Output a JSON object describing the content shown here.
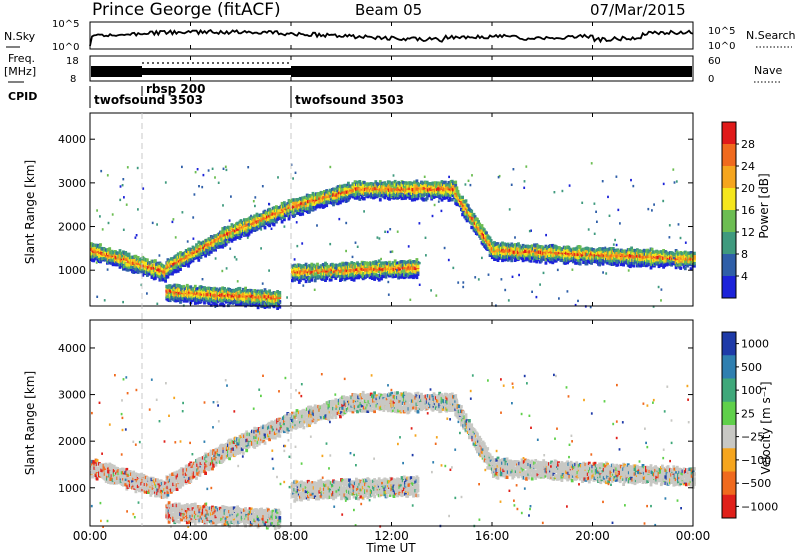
{
  "header": {
    "station": "Prince George (fitACF)",
    "beam": "Beam 05",
    "date": "07/Mar/2015"
  },
  "strip_noise": {
    "left_label": "N.Sky",
    "right_label": "N.Search",
    "left_ticks": [
      "10^5",
      "10^0"
    ],
    "right_ticks": [
      "10^5",
      "10^0"
    ]
  },
  "strip_freq": {
    "left_label_1": "Freq.",
    "left_label_2": "[MHz]",
    "right_label": "Nave",
    "left_ticks": [
      "18",
      "8"
    ],
    "right_ticks": [
      "60",
      "0"
    ]
  },
  "cpid": {
    "label": "CPID",
    "segments": [
      {
        "name": "twofsound 3503",
        "start_hour": 0
      },
      {
        "name": "rbsp 200",
        "start_hour": 2
      },
      {
        "name": "twofsound 3503",
        "start_hour": 8
      }
    ]
  },
  "x_axis": {
    "label": "Time UT",
    "ticks": [
      "00:00",
      "04:00",
      "08:00",
      "12:00",
      "16:00",
      "20:00",
      "00:00"
    ]
  },
  "power_panel": {
    "ylabel": "Slant Range [km]",
    "yticks": [
      "1000",
      "2000",
      "3000",
      "4000"
    ],
    "colorbar_label": "Power [dB]",
    "colorbar_ticks": [
      "4",
      "8",
      "12",
      "16",
      "20",
      "24",
      "28"
    ],
    "colors": [
      "#1c23d9",
      "#2f5fa8",
      "#3f9a7e",
      "#6cbd52",
      "#f5e61c",
      "#f5a51e",
      "#f06a1e",
      "#e01a1a"
    ]
  },
  "velocity_panel": {
    "ylabel": "Slant Range [km]",
    "yticks": [
      "1000",
      "2000",
      "3000",
      "4000"
    ],
    "colorbar_label": "Velocity [m s⁻¹]",
    "colorbar_ticks": [
      "1000",
      "500",
      "100",
      "25",
      "−25",
      "−100",
      "−500",
      "−1000"
    ],
    "colors": [
      "#1e3aa8",
      "#2f7fb0",
      "#3fa87a",
      "#5fd04a",
      "#c8c8c4",
      "#f5a51e",
      "#f06a1e",
      "#e0201a"
    ]
  },
  "chart_data": {
    "type": "heatmap",
    "x_range_hours": [
      0,
      24
    ],
    "y_range_km": [
      180,
      4600
    ],
    "power_bands": [
      {
        "t0": 0.0,
        "t1": 3.0,
        "r0": 1500,
        "r1": 1000
      },
      {
        "t0": 3.0,
        "t1": 5.5,
        "r0": 1100,
        "r1": 1900
      },
      {
        "t0": 5.5,
        "t1": 8.0,
        "r0": 1900,
        "r1": 2500
      },
      {
        "t0": 8.0,
        "t1": 10.5,
        "r0": 2500,
        "r1": 2900
      },
      {
        "t0": 10.5,
        "t1": 14.5,
        "r0": 2900,
        "r1": 2900
      },
      {
        "t0": 14.5,
        "t1": 16.0,
        "r0": 2800,
        "r1": 1500
      },
      {
        "t0": 16.0,
        "t1": 24.0,
        "r0": 1500,
        "r1": 1300
      },
      {
        "t0": 8.0,
        "t1": 13.0,
        "r0": 1000,
        "r1": 1100
      },
      {
        "t0": 3.0,
        "t1": 7.5,
        "r0": 550,
        "r1": 400
      }
    ]
  }
}
